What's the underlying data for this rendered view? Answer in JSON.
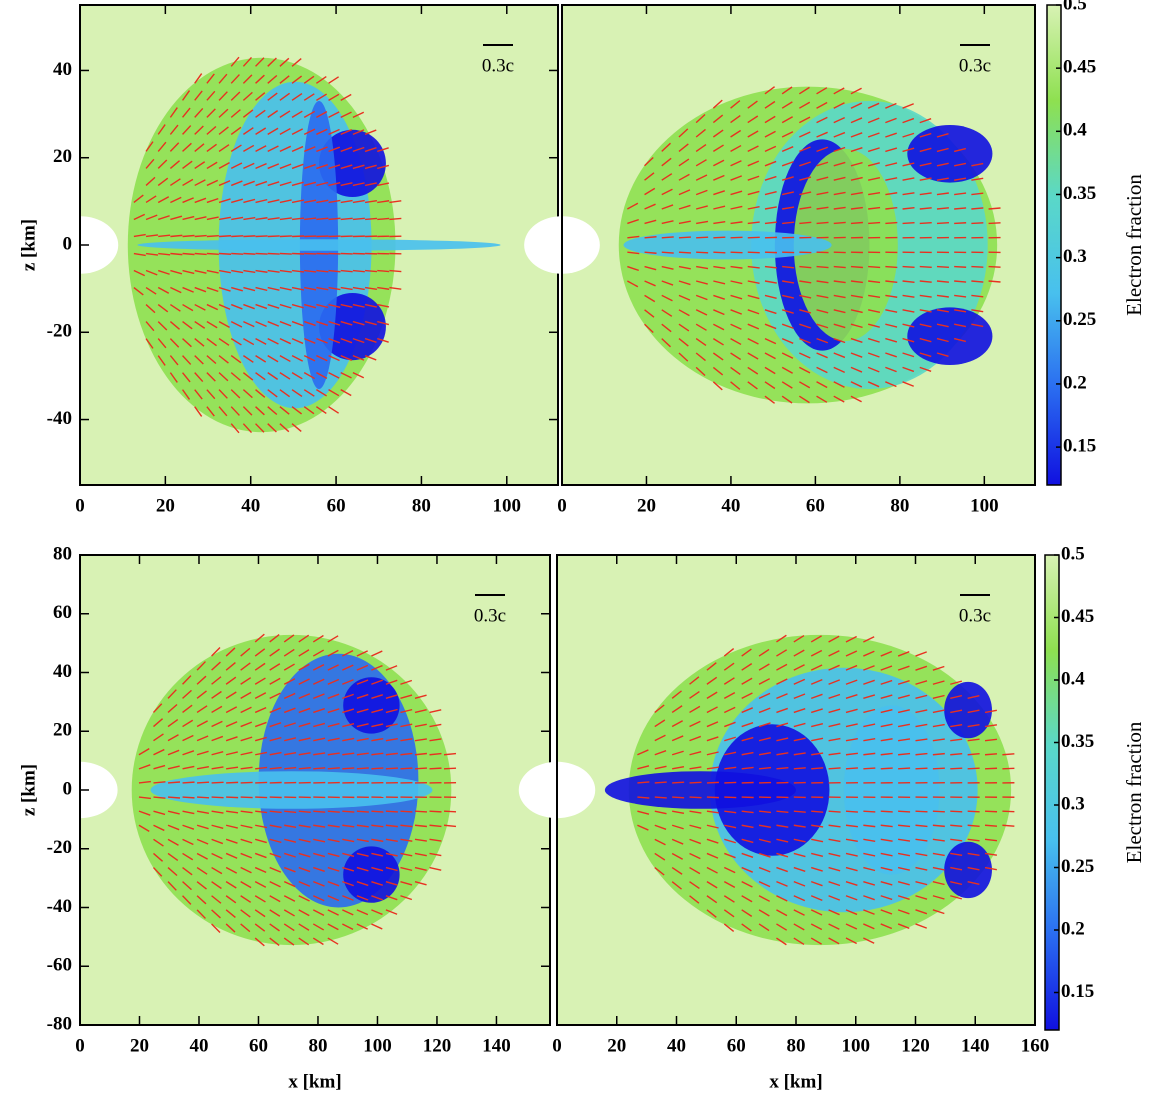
{
  "chart_data": [
    {
      "type": "heatmap",
      "xlim": [
        0,
        112
      ],
      "ylim": [
        -55,
        55
      ],
      "xticks": [
        0,
        20,
        40,
        60,
        80,
        100
      ],
      "yticks": [
        -40,
        -20,
        0,
        20,
        40
      ],
      "ylabel": "z [km]",
      "annotation": "0.3c",
      "background": "#d8f2b4",
      "arrow_color": "#e83020",
      "colormap": [
        "#1010e0",
        "#2a6cf0",
        "#48c0ee",
        "#5ad8c8",
        "#8ee050",
        "#d8f2b4"
      ]
    },
    {
      "type": "heatmap",
      "xlim": [
        0,
        112
      ],
      "ylim": [
        -55,
        55
      ],
      "xticks": [
        0,
        20,
        40,
        60,
        80,
        100
      ],
      "annotation": "0.3c",
      "background": "#d8f2b4",
      "arrow_color": "#e83020",
      "colormap": [
        "#1010e0",
        "#2a6cf0",
        "#48c0ee",
        "#5ad8c8",
        "#8ee050",
        "#d8f2b4"
      ],
      "colorbar": {
        "label": "Electron fraction",
        "lim": [
          0.12,
          0.5
        ],
        "ticks": [
          0.15,
          0.2,
          0.25,
          0.3,
          0.35,
          0.4,
          0.45,
          0.5
        ]
      }
    },
    {
      "type": "heatmap",
      "xlim": [
        0,
        158
      ],
      "ylim": [
        -80,
        80
      ],
      "xticks": [
        0,
        20,
        40,
        60,
        80,
        100,
        120,
        140
      ],
      "yticks": [
        -80,
        -60,
        -40,
        -20,
        0,
        20,
        40,
        60,
        80
      ],
      "xlabel": "x [km]",
      "ylabel": "z [km]",
      "annotation": "0.3c",
      "background": "#d8f2b4",
      "arrow_color": "#e83020",
      "colormap": [
        "#1010e0",
        "#2a6cf0",
        "#48c0ee",
        "#5ad8c8",
        "#8ee050",
        "#d8f2b4"
      ]
    },
    {
      "type": "heatmap",
      "xlim": [
        0,
        160
      ],
      "ylim": [
        -80,
        80
      ],
      "xticks": [
        0,
        20,
        40,
        60,
        80,
        100,
        120,
        140,
        160
      ],
      "xlabel": "x [km]",
      "annotation": "0.3c",
      "background": "#d8f2b4",
      "arrow_color": "#e83020",
      "colormap": [
        "#1010e0",
        "#2a6cf0",
        "#48c0ee",
        "#5ad8c8",
        "#8ee050",
        "#d8f2b4"
      ],
      "colorbar": {
        "label": "Electron fraction",
        "lim": [
          0.12,
          0.5
        ],
        "ticks": [
          0.15,
          0.2,
          0.25,
          0.3,
          0.35,
          0.4,
          0.45,
          0.5
        ]
      }
    }
  ]
}
